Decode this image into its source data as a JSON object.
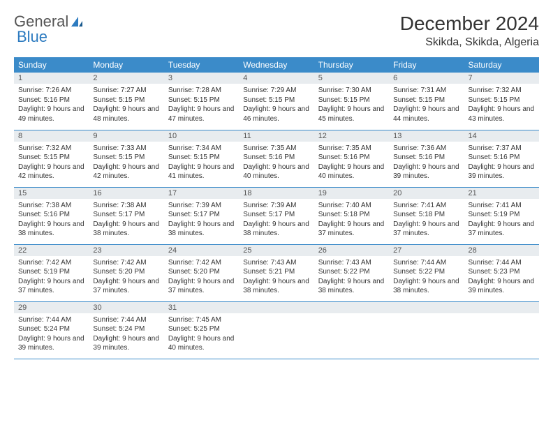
{
  "logo": {
    "text1": "General",
    "text2": "Blue"
  },
  "title": "December 2024",
  "location": "Skikda, Skikda, Algeria",
  "colors": {
    "header_bg": "#3b8bc9",
    "header_text": "#ffffff",
    "daynum_bg": "#e8ecef",
    "border": "#3b8bc9",
    "logo_blue": "#2d7bc0"
  },
  "weekdays": [
    "Sunday",
    "Monday",
    "Tuesday",
    "Wednesday",
    "Thursday",
    "Friday",
    "Saturday"
  ],
  "weeks": [
    [
      {
        "n": "1",
        "sr": "Sunrise: 7:26 AM",
        "ss": "Sunset: 5:16 PM",
        "dl": "Daylight: 9 hours and 49 minutes."
      },
      {
        "n": "2",
        "sr": "Sunrise: 7:27 AM",
        "ss": "Sunset: 5:15 PM",
        "dl": "Daylight: 9 hours and 48 minutes."
      },
      {
        "n": "3",
        "sr": "Sunrise: 7:28 AM",
        "ss": "Sunset: 5:15 PM",
        "dl": "Daylight: 9 hours and 47 minutes."
      },
      {
        "n": "4",
        "sr": "Sunrise: 7:29 AM",
        "ss": "Sunset: 5:15 PM",
        "dl": "Daylight: 9 hours and 46 minutes."
      },
      {
        "n": "5",
        "sr": "Sunrise: 7:30 AM",
        "ss": "Sunset: 5:15 PM",
        "dl": "Daylight: 9 hours and 45 minutes."
      },
      {
        "n": "6",
        "sr": "Sunrise: 7:31 AM",
        "ss": "Sunset: 5:15 PM",
        "dl": "Daylight: 9 hours and 44 minutes."
      },
      {
        "n": "7",
        "sr": "Sunrise: 7:32 AM",
        "ss": "Sunset: 5:15 PM",
        "dl": "Daylight: 9 hours and 43 minutes."
      }
    ],
    [
      {
        "n": "8",
        "sr": "Sunrise: 7:32 AM",
        "ss": "Sunset: 5:15 PM",
        "dl": "Daylight: 9 hours and 42 minutes."
      },
      {
        "n": "9",
        "sr": "Sunrise: 7:33 AM",
        "ss": "Sunset: 5:15 PM",
        "dl": "Daylight: 9 hours and 42 minutes."
      },
      {
        "n": "10",
        "sr": "Sunrise: 7:34 AM",
        "ss": "Sunset: 5:15 PM",
        "dl": "Daylight: 9 hours and 41 minutes."
      },
      {
        "n": "11",
        "sr": "Sunrise: 7:35 AM",
        "ss": "Sunset: 5:16 PM",
        "dl": "Daylight: 9 hours and 40 minutes."
      },
      {
        "n": "12",
        "sr": "Sunrise: 7:35 AM",
        "ss": "Sunset: 5:16 PM",
        "dl": "Daylight: 9 hours and 40 minutes."
      },
      {
        "n": "13",
        "sr": "Sunrise: 7:36 AM",
        "ss": "Sunset: 5:16 PM",
        "dl": "Daylight: 9 hours and 39 minutes."
      },
      {
        "n": "14",
        "sr": "Sunrise: 7:37 AM",
        "ss": "Sunset: 5:16 PM",
        "dl": "Daylight: 9 hours and 39 minutes."
      }
    ],
    [
      {
        "n": "15",
        "sr": "Sunrise: 7:38 AM",
        "ss": "Sunset: 5:16 PM",
        "dl": "Daylight: 9 hours and 38 minutes."
      },
      {
        "n": "16",
        "sr": "Sunrise: 7:38 AM",
        "ss": "Sunset: 5:17 PM",
        "dl": "Daylight: 9 hours and 38 minutes."
      },
      {
        "n": "17",
        "sr": "Sunrise: 7:39 AM",
        "ss": "Sunset: 5:17 PM",
        "dl": "Daylight: 9 hours and 38 minutes."
      },
      {
        "n": "18",
        "sr": "Sunrise: 7:39 AM",
        "ss": "Sunset: 5:17 PM",
        "dl": "Daylight: 9 hours and 38 minutes."
      },
      {
        "n": "19",
        "sr": "Sunrise: 7:40 AM",
        "ss": "Sunset: 5:18 PM",
        "dl": "Daylight: 9 hours and 37 minutes."
      },
      {
        "n": "20",
        "sr": "Sunrise: 7:41 AM",
        "ss": "Sunset: 5:18 PM",
        "dl": "Daylight: 9 hours and 37 minutes."
      },
      {
        "n": "21",
        "sr": "Sunrise: 7:41 AM",
        "ss": "Sunset: 5:19 PM",
        "dl": "Daylight: 9 hours and 37 minutes."
      }
    ],
    [
      {
        "n": "22",
        "sr": "Sunrise: 7:42 AM",
        "ss": "Sunset: 5:19 PM",
        "dl": "Daylight: 9 hours and 37 minutes."
      },
      {
        "n": "23",
        "sr": "Sunrise: 7:42 AM",
        "ss": "Sunset: 5:20 PM",
        "dl": "Daylight: 9 hours and 37 minutes."
      },
      {
        "n": "24",
        "sr": "Sunrise: 7:42 AM",
        "ss": "Sunset: 5:20 PM",
        "dl": "Daylight: 9 hours and 37 minutes."
      },
      {
        "n": "25",
        "sr": "Sunrise: 7:43 AM",
        "ss": "Sunset: 5:21 PM",
        "dl": "Daylight: 9 hours and 38 minutes."
      },
      {
        "n": "26",
        "sr": "Sunrise: 7:43 AM",
        "ss": "Sunset: 5:22 PM",
        "dl": "Daylight: 9 hours and 38 minutes."
      },
      {
        "n": "27",
        "sr": "Sunrise: 7:44 AM",
        "ss": "Sunset: 5:22 PM",
        "dl": "Daylight: 9 hours and 38 minutes."
      },
      {
        "n": "28",
        "sr": "Sunrise: 7:44 AM",
        "ss": "Sunset: 5:23 PM",
        "dl": "Daylight: 9 hours and 39 minutes."
      }
    ],
    [
      {
        "n": "29",
        "sr": "Sunrise: 7:44 AM",
        "ss": "Sunset: 5:24 PM",
        "dl": "Daylight: 9 hours and 39 minutes."
      },
      {
        "n": "30",
        "sr": "Sunrise: 7:44 AM",
        "ss": "Sunset: 5:24 PM",
        "dl": "Daylight: 9 hours and 39 minutes."
      },
      {
        "n": "31",
        "sr": "Sunrise: 7:45 AM",
        "ss": "Sunset: 5:25 PM",
        "dl": "Daylight: 9 hours and 40 minutes."
      },
      {
        "empty": true
      },
      {
        "empty": true
      },
      {
        "empty": true
      },
      {
        "empty": true
      }
    ]
  ]
}
